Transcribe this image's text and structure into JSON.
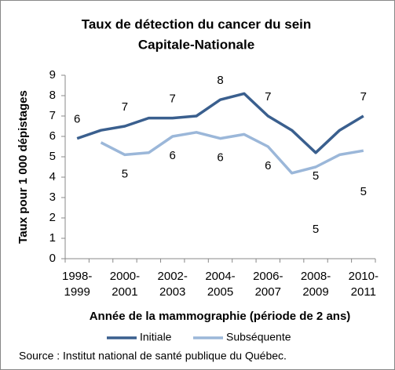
{
  "chart_data": {
    "type": "line",
    "title": [
      "Taux de détection du cancer du sein",
      "Capitale-Nationale"
    ],
    "x_label": "Année de la mammographie (période de 2 ans)",
    "y_label": "Taux pour 1 000 dépistages",
    "source": "Source : Institut national de santé publique du Québec.",
    "categories": [
      "1998-1999",
      null,
      "2000-2001",
      null,
      "2002-2003",
      null,
      "2004-2005",
      null,
      "2006-2007",
      null,
      "2008-2009",
      null,
      "2010-2011"
    ],
    "series": [
      {
        "name": "Initiale",
        "color": "#3a5f8e",
        "values": [
          5.9,
          6.3,
          6.5,
          6.9,
          6.9,
          7.0,
          7.8,
          8.1,
          7.0,
          6.3,
          5.2,
          6.3,
          7.0
        ],
        "value_labels": [
          "6",
          null,
          "7",
          null,
          "7",
          null,
          "8",
          null,
          "7",
          null,
          "5",
          null,
          "7"
        ]
      },
      {
        "name": "Subséquente",
        "color": "#9bb7d9",
        "values": [
          null,
          5.7,
          5.1,
          5.2,
          6.0,
          6.2,
          5.9,
          6.1,
          5.5,
          4.2,
          4.5,
          5.1,
          5.3
        ],
        "value_labels": [
          null,
          null,
          "5",
          null,
          "6",
          null,
          "6",
          null,
          "6",
          null,
          "5",
          null,
          "5"
        ]
      }
    ],
    "ylim": [
      0,
      9
    ],
    "yticks": [
      0,
      1,
      2,
      3,
      4,
      5,
      6,
      7,
      8,
      9
    ],
    "legend": "bottom"
  }
}
